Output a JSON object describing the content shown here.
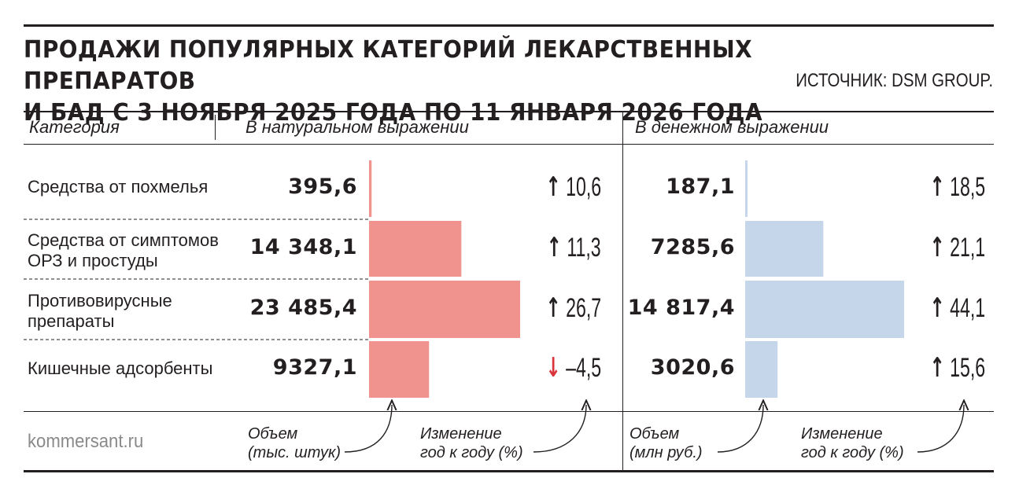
{
  "header": {
    "title_line1": "Продажи популярных категорий лекарственных препаратов",
    "title_line2": "и БАД с 3 ноября 2025 года по 11 января 2026 года",
    "source": "ИСТОЧНИК: DSM GROUP."
  },
  "columns": {
    "category": "Категория",
    "natural": "В натуральном выражении",
    "money": "В денежном выражении"
  },
  "notes": {
    "volume_natural": "Объем (тыс. штук)",
    "volume_natural_l1": "Объем",
    "volume_natural_l2": "(тыс. штук)",
    "change_natural_l1": "Изменение",
    "change_natural_l2": "год к году (%)",
    "volume_money_l1": "Объем",
    "volume_money_l2": "(млн руб.)",
    "change_money_l1": "Изменение",
    "change_money_l2": "год к году (%)"
  },
  "footer": {
    "site": "kommersant.ru"
  },
  "colors": {
    "natural_bar": "#f0928d",
    "money_bar": "#c6d6ea",
    "down_arrow": "#d9343a",
    "text": "#231f20"
  },
  "chart_data": [
    {
      "type": "bar",
      "orientation": "horizontal",
      "name": "В натуральном выражении",
      "unit": "тыс. штук",
      "categories": [
        "Средства от похмелья",
        "Средства от симптомов ОРЗ и простуды",
        "Противовирусные препараты",
        "Кишечные адсорбенты"
      ],
      "values": [
        395.6,
        14348.1,
        23485.4,
        9327.1
      ],
      "value_labels": [
        "395,6",
        "14 348,1",
        "23 485,4",
        "9327,1"
      ],
      "change_yoy_pct": [
        10.6,
        11.3,
        26.7,
        -4.5
      ],
      "change_labels": [
        "10,6",
        "11,3",
        "26,7",
        "–4,5"
      ],
      "change_direction": [
        "up",
        "up",
        "up",
        "down"
      ]
    },
    {
      "type": "bar",
      "orientation": "horizontal",
      "name": "В денежном выражении",
      "unit": "млн руб.",
      "categories": [
        "Средства от похмелья",
        "Средства от симптомов ОРЗ и простуды",
        "Противовирусные препараты",
        "Кишечные адсорбенты"
      ],
      "values": [
        187.1,
        7285.6,
        14817.4,
        3020.6
      ],
      "value_labels": [
        "187,1",
        "7285,6",
        "14 817,4",
        "3020,6"
      ],
      "change_yoy_pct": [
        18.5,
        21.1,
        44.1,
        15.6
      ],
      "change_labels": [
        "18,5",
        "21,1",
        "44,1",
        "15,6"
      ],
      "change_direction": [
        "up",
        "up",
        "up",
        "up"
      ]
    }
  ]
}
